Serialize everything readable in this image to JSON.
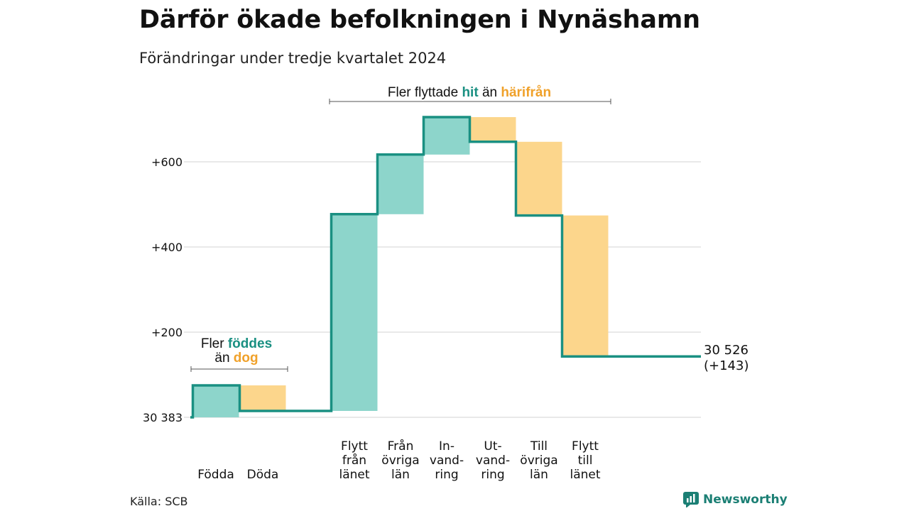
{
  "title": "Därför ökade befolkningen i Nynäshamn",
  "subtitle": "Förändringar under tredje kvartalet 2024",
  "source": "Källa: SCB",
  "brand": "Newsworthy",
  "colors": {
    "increase": "#8dd5cb",
    "decrease": "#fcd68c",
    "line": "#1a9082",
    "grid": "#e2e2e2",
    "teal_text": "#1a9082",
    "orange_text": "#f0a12a"
  },
  "annotations": {
    "migration": {
      "prefix": "Fler flyttade",
      "hit": "hit",
      "mid": "än",
      "harifran": "härifrån"
    },
    "births": {
      "prefix": "Fler",
      "fodda": "föddes",
      "mid": "än",
      "dog": "dog"
    }
  },
  "end_label": {
    "value": "30 526",
    "change": "(+143)"
  },
  "chart_data": {
    "type": "waterfall",
    "baseline_label": "30 383",
    "y_ticks": [
      0,
      200,
      400,
      600
    ],
    "y_tick_labels": [
      "30 383",
      "+200",
      "+400",
      "+600"
    ],
    "ylim": [
      0,
      730
    ],
    "grid": true,
    "steps": [
      {
        "lines": [
          "Födda"
        ],
        "value": 75
      },
      {
        "lines": [
          "Döda"
        ],
        "value": -60
      },
      {
        "lines": [
          "Flytt",
          "från",
          "länet"
        ],
        "value": 462
      },
      {
        "lines": [
          "Från",
          "övriga",
          "län"
        ],
        "value": 140
      },
      {
        "lines": [
          "In-",
          "vand-",
          "ring"
        ],
        "value": 88
      },
      {
        "lines": [
          "Ut-",
          "vand-",
          "ring"
        ],
        "value": -58
      },
      {
        "lines": [
          "Till",
          "övriga",
          "län"
        ],
        "value": -173
      },
      {
        "lines": [
          "Flytt",
          "till",
          "länet"
        ],
        "value": -331
      }
    ],
    "end_total_change": 143
  }
}
